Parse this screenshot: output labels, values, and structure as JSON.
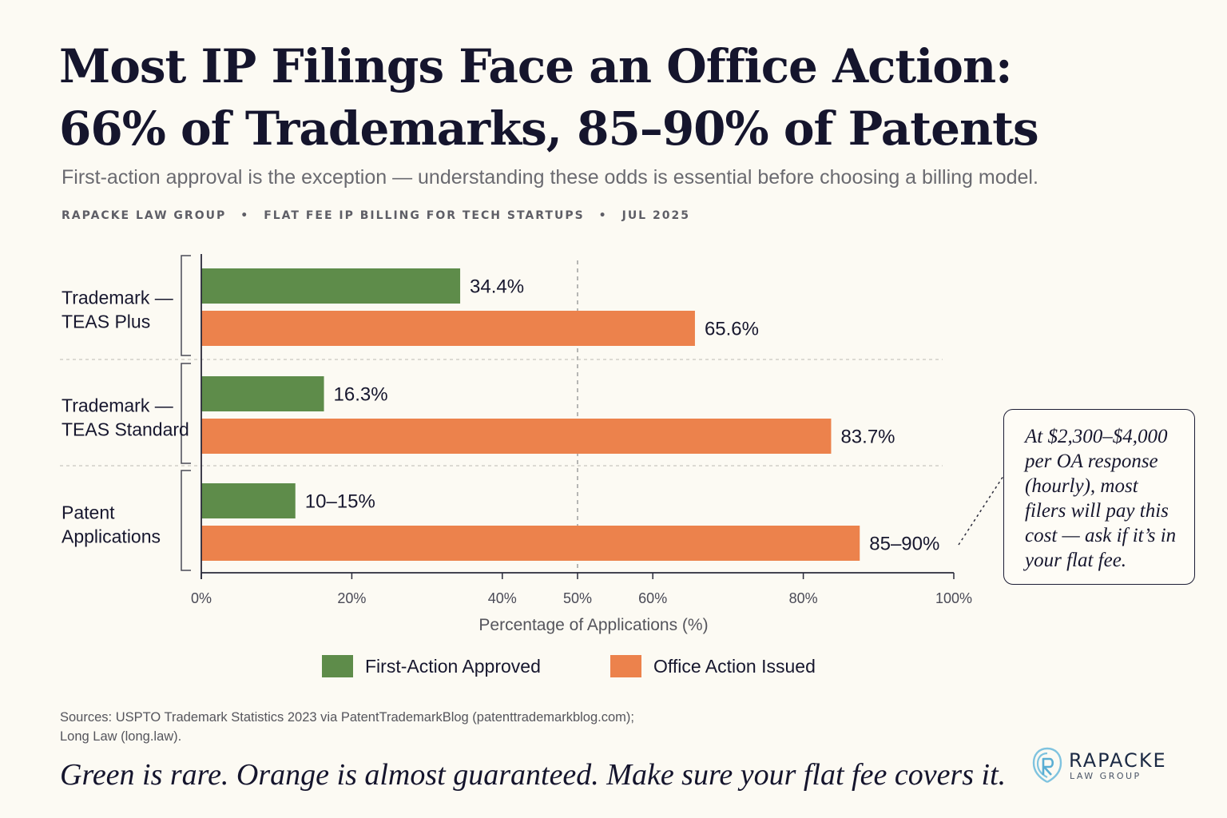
{
  "header": {
    "title_line1": "Most IP Filings Face an Office Action:",
    "title_line2": "66% of Trademarks, 85–90% of Patents",
    "subtitle": "First-action approval is the exception — understanding these odds is essential before choosing a billing model.",
    "meta": [
      "RAPACKE LAW GROUP",
      "FLAT FEE IP BILLING FOR TECH STARTUPS",
      "JUL 2025"
    ],
    "meta_separator": "•"
  },
  "colors": {
    "approved": "#5e8c4a",
    "office_action": "#ec824c",
    "axis": "#2a2a3a",
    "grid": "#a5a5a5",
    "text": "#17172e",
    "background": "#fcfaf3"
  },
  "chart_data": {
    "type": "bar",
    "orientation": "horizontal",
    "categories": [
      [
        "Trademark —",
        "TEAS Plus"
      ],
      [
        "Trademark —",
        "TEAS Standard"
      ],
      [
        "Patent",
        "Applications"
      ]
    ],
    "series": [
      {
        "name": "First-Action Approved",
        "values": [
          34.4,
          16.3,
          12.5
        ],
        "labels": [
          "34.4%",
          "16.3%",
          "10–15%"
        ],
        "range": [
          null,
          null,
          [
            10,
            15
          ]
        ]
      },
      {
        "name": "Office Action Issued",
        "values": [
          65.6,
          83.7,
          87.5
        ],
        "labels": [
          "65.6%",
          "83.7%",
          "85–90%"
        ],
        "range": [
          null,
          null,
          [
            85,
            90
          ]
        ]
      }
    ],
    "xlabel": "Percentage of Applications (%)",
    "xticks": [
      "0%",
      "20%",
      "40%",
      "50%",
      "60%",
      "80%",
      "100%"
    ],
    "xtick_values": [
      0,
      20,
      40,
      50,
      60,
      80,
      100
    ],
    "xlim": [
      0,
      100
    ],
    "reference_line": 50,
    "legend": "bottom",
    "grid": false
  },
  "callout": {
    "text": "At $2,300–$4,000 per OA response (hourly), most filers will pay this cost — ask if it’s in your flat fee."
  },
  "footer": {
    "sources_line1": "Sources: USPTO Trademark Statistics 2023 via PatentTrademarkBlog (patenttrademarkblog.com);",
    "sources_line2": "Long Law (long.law).",
    "tagline": "Green is rare. Orange is almost guaranteed. Make sure your flat fee covers it."
  },
  "logo": {
    "name": "RAPACKE",
    "sub": "LAW GROUP"
  }
}
